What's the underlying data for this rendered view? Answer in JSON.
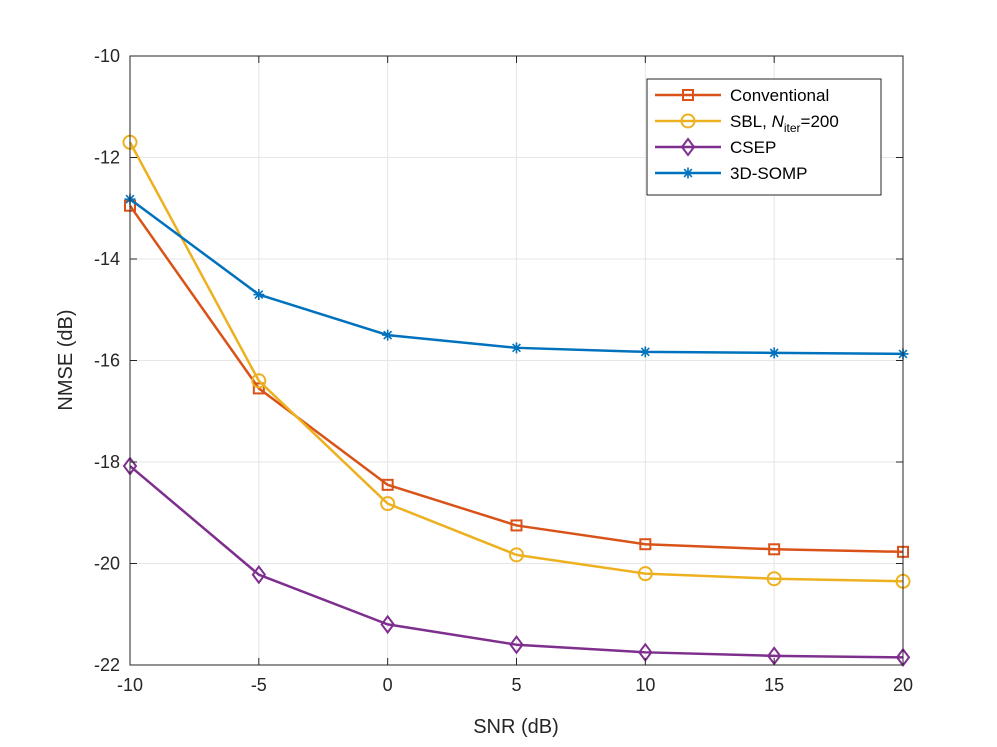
{
  "chart_data": {
    "type": "line",
    "title": "",
    "xlabel": "SNR (dB)",
    "ylabel": "NMSE (dB)",
    "x": [
      -10,
      -5,
      0,
      5,
      10,
      15,
      20
    ],
    "xticks": [
      -10,
      -5,
      0,
      5,
      10,
      15,
      20
    ],
    "xtick_labels": [
      "-10",
      "-5",
      "0",
      "5",
      "10",
      "15",
      "20"
    ],
    "yticks": [
      -22,
      -20,
      -18,
      -16,
      -14,
      -12,
      -10
    ],
    "ytick_labels": [
      "-22",
      "-20",
      "-18",
      "-16",
      "-14",
      "-12",
      "-10"
    ],
    "xlim": [
      -10,
      20
    ],
    "ylim": [
      -22,
      -10
    ],
    "grid": true,
    "legend_position": "top-right",
    "series": [
      {
        "name": "Conventional",
        "label_parts": [
          "Conventional"
        ],
        "color": "#D95319",
        "marker": "square",
        "values": [
          -12.95,
          -16.55,
          -18.45,
          -19.25,
          -19.62,
          -19.72,
          -19.77
        ]
      },
      {
        "name": "SBL, N_iter=200",
        "label_parts": [
          "SBL, ",
          "N",
          "iter",
          "=200"
        ],
        "color": "#EDB120",
        "marker": "circle",
        "values": [
          -11.7,
          -16.4,
          -18.82,
          -19.83,
          -20.2,
          -20.3,
          -20.35
        ]
      },
      {
        "name": "CSEP",
        "label_parts": [
          "CSEP"
        ],
        "color": "#7E2F8E",
        "marker": "diamond",
        "values": [
          -18.08,
          -20.22,
          -21.2,
          -21.6,
          -21.75,
          -21.82,
          -21.85
        ]
      },
      {
        "name": "3D-SOMP",
        "label_parts": [
          "3D-SOMP"
        ],
        "color": "#0072BD",
        "marker": "asterisk",
        "values": [
          -12.82,
          -14.7,
          -15.5,
          -15.75,
          -15.83,
          -15.85,
          -15.87
        ]
      }
    ]
  }
}
